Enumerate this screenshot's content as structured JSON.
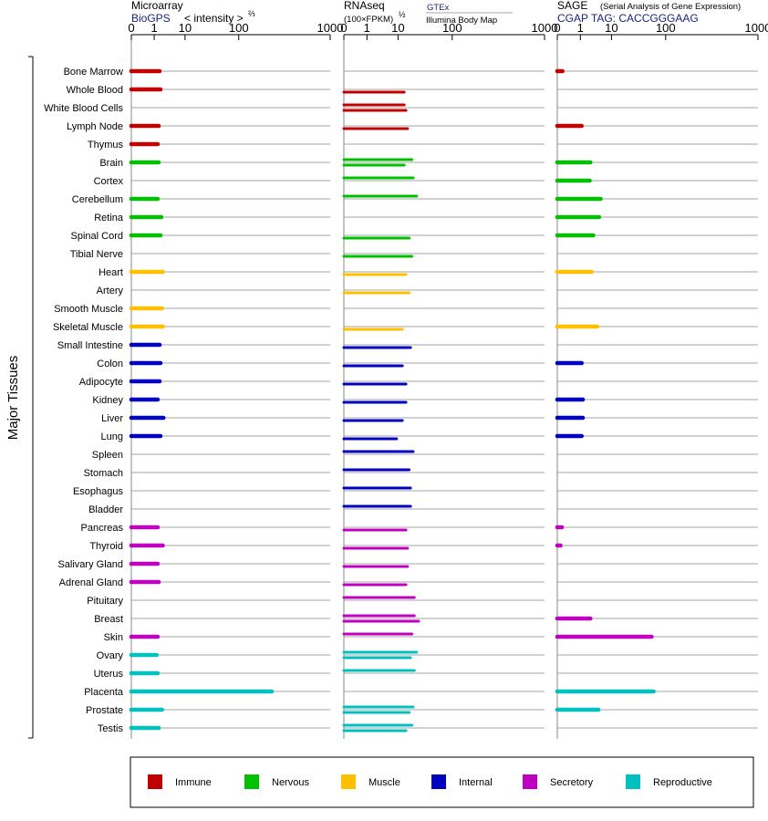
{
  "chart_data": {
    "type": "bar",
    "y_axis_label": "Major Tissues",
    "categories": [
      "Bone Marrow",
      "Whole Blood",
      "White Blood Cells",
      "Lymph Node",
      "Thymus",
      "Brain",
      "Cortex",
      "Cerebellum",
      "Retina",
      "Spinal Cord",
      "Tibial Nerve",
      "Heart",
      "Artery",
      "Smooth Muscle",
      "Skeletal Muscle",
      "Small Intestine",
      "Colon",
      "Adipocyte",
      "Kidney",
      "Liver",
      "Lung",
      "Spleen",
      "Stomach",
      "Esophagus",
      "Bladder",
      "Pancreas",
      "Thyroid",
      "Salivary Gland",
      "Adrenal Gland",
      "Pituitary",
      "Breast",
      "Skin",
      "Ovary",
      "Uterus",
      "Placenta",
      "Prostate",
      "Testis"
    ],
    "groups": [
      "Immune",
      "Immune",
      "Immune",
      "Immune",
      "Immune",
      "Nervous",
      "Nervous",
      "Nervous",
      "Nervous",
      "Nervous",
      "Nervous",
      "Muscle",
      "Muscle",
      "Muscle",
      "Muscle",
      "Internal",
      "Internal",
      "Internal",
      "Internal",
      "Internal",
      "Internal",
      "Internal",
      "Internal",
      "Internal",
      "Internal",
      "Secretory",
      "Secretory",
      "Secretory",
      "Secretory",
      "Secretory",
      "Secretory",
      "Secretory",
      "Reproductive",
      "Reproductive",
      "Reproductive",
      "Reproductive",
      "Reproductive"
    ],
    "colors": {
      "Immune": "#c00000",
      "Nervous": "#00c000",
      "Muscle": "#ffc000",
      "Internal": "#0000c0",
      "Secretory": "#c000c0",
      "Reproductive": "#00c0c0"
    },
    "ticks": [
      0,
      1,
      10,
      100,
      1000
    ],
    "panels": [
      {
        "title": "Microarray",
        "subtitle": "BioGPS",
        "scale_label": "< intensity >",
        "scale_exponent": "⅔",
        "values": [
          1.5,
          1.6,
          null,
          1.4,
          1.3,
          1.4,
          null,
          1.3,
          1.7,
          1.6,
          null,
          1.9,
          null,
          1.8,
          1.9,
          1.5,
          1.6,
          1.5,
          1.3,
          2.0,
          1.6,
          null,
          null,
          null,
          null,
          1.3,
          1.9,
          1.3,
          1.4,
          null,
          null,
          1.3,
          1.2,
          1.3,
          230,
          1.8,
          1.4
        ]
      },
      {
        "title": "RNAseq",
        "subtitle": "(100×FPKM)",
        "scale_exponent": "½",
        "label_top": "GTEx",
        "label_bottom": "Illumina Body Map",
        "values_gtex": [
          null,
          null,
          13,
          null,
          null,
          18,
          19,
          22,
          null,
          null,
          null,
          null,
          null,
          null,
          null,
          null,
          null,
          null,
          null,
          null,
          null,
          19,
          16,
          17,
          17,
          null,
          null,
          null,
          null,
          20,
          20,
          18,
          22,
          20,
          null,
          19,
          18
        ],
        "values_ibm": [
          null,
          13,
          14,
          15,
          null,
          13,
          null,
          null,
          null,
          16,
          18,
          14,
          16,
          null,
          12,
          17,
          12,
          14,
          14,
          12,
          9,
          null,
          null,
          null,
          null,
          14,
          15,
          15,
          14,
          null,
          24,
          null,
          17,
          null,
          null,
          16,
          14
        ]
      },
      {
        "title": "SAGE",
        "subtitle_small": "(Serial Analysis of Gene Expression)",
        "subtitle": "CGAP TAG: CACCGGGAAG",
        "values": [
          0.05,
          null,
          null,
          1.1,
          null,
          2.1,
          2.0,
          4.5,
          4.0,
          2.6,
          null,
          2.3,
          null,
          null,
          3.5,
          null,
          1.1,
          null,
          1.2,
          1.2,
          1.1,
          null,
          null,
          null,
          null,
          0.04,
          0.02,
          null,
          null,
          null,
          2.1,
          55,
          null,
          null,
          60,
          3.8,
          null
        ]
      }
    ],
    "legend": [
      "Immune",
      "Nervous",
      "Muscle",
      "Internal",
      "Secretory",
      "Reproductive"
    ]
  }
}
